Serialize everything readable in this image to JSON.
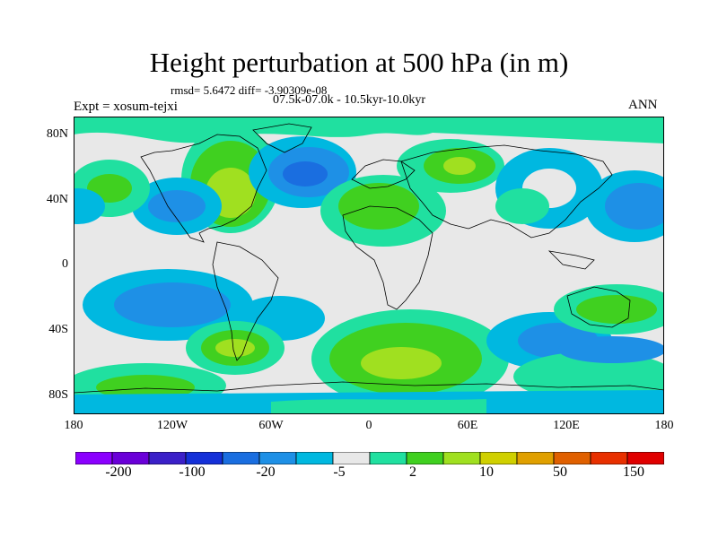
{
  "title": "Height perturbation at 500 hPa (in m)",
  "stats_line": "rmsd= 5.6472 diff= -3.90309e-08",
  "experiment": "Expt = xosum-tejxi",
  "period": "07.5k-07.0k - 10.5kyr-10.0kyr",
  "season": "ANN",
  "lat_labels": [
    "80N",
    "40N",
    "0",
    "40S",
    "80S"
  ],
  "lon_labels": [
    "180",
    "120W",
    "60W",
    "0",
    "60E",
    "120E",
    "180"
  ],
  "colorbar": {
    "colors": [
      "#8b00ff",
      "#6a00d8",
      "#3b20c8",
      "#1430d8",
      "#1a6ee0",
      "#1e90e6",
      "#00b8e0",
      "#e8e8e8",
      "#20e0a0",
      "#40d020",
      "#a0e020",
      "#d0d000",
      "#e0a000",
      "#e06000",
      "#e83000",
      "#e00000"
    ],
    "labels": [
      "-200",
      "-100",
      "-20",
      "-5",
      "2",
      "10",
      "50",
      "150"
    ]
  }
}
